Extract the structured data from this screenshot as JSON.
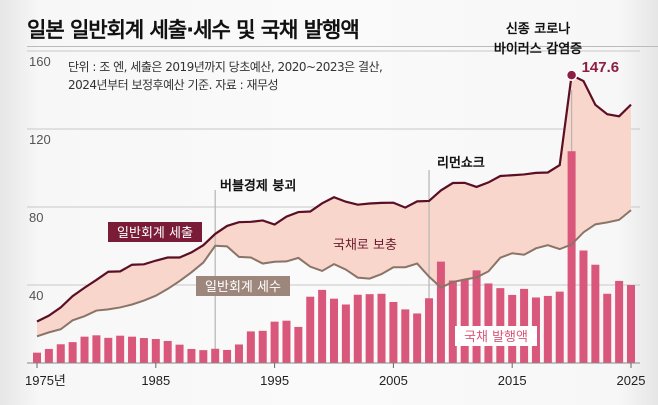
{
  "chart_data": {
    "type": "bar+line",
    "title": "일본 일반회계 세출·세수 및 국채 발행액",
    "note_lines": [
      "단위 : 조 엔, 세출은 2019년까지 당초예산, 2020~2023은 결산,",
      "2024년부터 보정후예산 기준. 자료 : 재무성"
    ],
    "x": [
      1975,
      1976,
      1977,
      1978,
      1979,
      1980,
      1981,
      1982,
      1983,
      1984,
      1985,
      1986,
      1987,
      1988,
      1989,
      1990,
      1991,
      1992,
      1993,
      1994,
      1995,
      1996,
      1997,
      1998,
      1999,
      2000,
      2001,
      2002,
      2003,
      2004,
      2005,
      2006,
      2007,
      2008,
      2009,
      2010,
      2011,
      2012,
      2013,
      2014,
      2015,
      2016,
      2017,
      2018,
      2019,
      2020,
      2021,
      2022,
      2023,
      2024,
      2025
    ],
    "x_tick_labels": [
      "1975년",
      "1985",
      "1995",
      "2005",
      "2015",
      "2025"
    ],
    "y_tick_labels": [
      "160",
      "120",
      "80",
      "40"
    ],
    "ylim": [
      0,
      160
    ],
    "grid": true,
    "series": [
      {
        "name": "일반회계 세출",
        "type": "line",
        "color": "#5a0f25",
        "values": [
          21.3,
          24.3,
          28.5,
          34.3,
          38.6,
          42.6,
          46.8,
          47.0,
          50.4,
          50.6,
          52.5,
          54.1,
          54.1,
          56.7,
          60.4,
          66.2,
          70.3,
          72.2,
          72.4,
          73.1,
          71.0,
          75.1,
          77.4,
          77.7,
          81.9,
          85.0,
          82.7,
          81.2,
          81.8,
          82.1,
          82.2,
          79.7,
          82.9,
          83.1,
          88.5,
          92.3,
          92.4,
          90.3,
          92.6,
          95.9,
          96.3,
          96.7,
          97.5,
          97.7,
          101.5,
          147.6,
          144.6,
          132.4,
          127.6,
          126.5,
          132.5
        ]
      },
      {
        "name": "일반회계 세수",
        "type": "line",
        "color": "#8a7468",
        "values": [
          13.7,
          15.7,
          17.3,
          21.9,
          24.0,
          26.9,
          27.5,
          28.5,
          30.0,
          32.0,
          34.5,
          38.0,
          42.0,
          46.5,
          51.5,
          60.1,
          59.8,
          54.4,
          54.1,
          51.0,
          51.9,
          52.1,
          53.9,
          49.4,
          47.2,
          50.7,
          47.9,
          43.8,
          43.3,
          45.6,
          49.1,
          49.1,
          51.0,
          44.3,
          38.7,
          41.5,
          42.8,
          43.9,
          47.0,
          54.0,
          56.3,
          55.5,
          58.8,
          60.4,
          58.4,
          60.8,
          67.0,
          71.1,
          72.1,
          73.4,
          78.4
        ]
      },
      {
        "name": "국채 발행액",
        "type": "bar",
        "color": "#d9577a",
        "values": [
          5.3,
          7.2,
          9.6,
          10.7,
          13.5,
          14.2,
          12.9,
          14.0,
          13.5,
          12.8,
          12.3,
          11.3,
          9.4,
          7.2,
          6.6,
          7.3,
          6.7,
          9.5,
          16.2,
          16.5,
          21.2,
          21.7,
          18.5,
          34.0,
          37.5,
          33.0,
          30.0,
          35.0,
          35.3,
          35.5,
          31.3,
          27.5,
          25.4,
          33.2,
          52.0,
          42.3,
          42.8,
          47.5,
          40.8,
          38.4,
          34.9,
          38.0,
          33.6,
          34.4,
          36.6,
          108.6,
          57.7,
          50.4,
          35.5,
          42.1,
          40.0
        ]
      }
    ],
    "gap_label": "국채로 보충",
    "peak_label": "147.6",
    "annotations": [
      {
        "year": 1990,
        "text": "버블경제 붕괴"
      },
      {
        "year": 2008,
        "text": "리먼쇼크"
      },
      {
        "year": 2020,
        "text_lines": [
          "신종 코로나",
          "바이러스 감염증"
        ]
      }
    ],
    "colors": {
      "fill": "#f9d6cc",
      "spend_box": "#7a1c38",
      "tax_box": "#9d877c",
      "bar": "#d9577a"
    }
  }
}
